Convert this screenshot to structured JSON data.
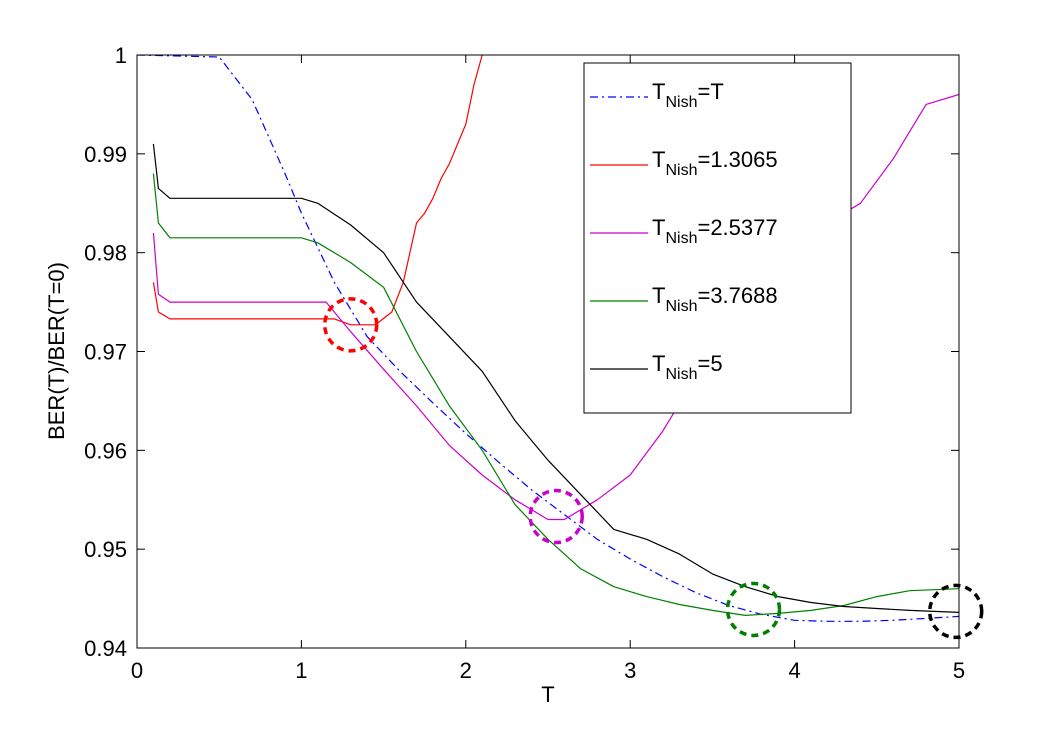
{
  "chart_data": {
    "type": "line",
    "xlabel": "T",
    "ylabel": "BER(T)/BER(T=0)",
    "xlim": [
      0,
      5
    ],
    "ylim": [
      0.94,
      1.0
    ],
    "xticks": [
      "0",
      "1",
      "2",
      "3",
      "4",
      "5"
    ],
    "yticks": [
      "0.94",
      "0.95",
      "0.96",
      "0.97",
      "0.98",
      "0.99",
      "1"
    ],
    "grid": false,
    "legend_position": "top-right",
    "series": [
      {
        "legend_main": "T",
        "legend_sub": "Nish",
        "legend_suffix": "=T",
        "color": "#0000ff",
        "dash": "dashdot",
        "x": [
          0,
          0.5,
          0.7,
          0.9,
          1.0,
          1.2,
          1.4,
          1.6,
          1.8,
          2.0,
          2.2,
          2.4,
          2.6,
          2.8,
          3.0,
          3.2,
          3.4,
          3.6,
          3.8,
          4.0,
          4.2,
          4.4,
          4.6,
          4.8,
          5.0
        ],
        "y": [
          1.0,
          0.9998,
          0.9955,
          0.988,
          0.984,
          0.977,
          0.9715,
          0.968,
          0.9648,
          0.9617,
          0.9588,
          0.956,
          0.9535,
          0.951,
          0.949,
          0.9472,
          0.9456,
          0.9443,
          0.9434,
          0.9428,
          0.9427,
          0.9427,
          0.9428,
          0.943,
          0.9432
        ]
      },
      {
        "legend_main": "T",
        "legend_sub": "Nish",
        "legend_suffix": "=1.3065",
        "color": "#ff0000",
        "dash": "solid",
        "x": [
          0.1,
          0.13,
          0.2,
          0.4,
          0.6,
          0.8,
          1.0,
          1.2,
          1.3,
          1.45,
          1.55,
          1.62,
          1.7,
          1.75,
          1.8,
          1.85,
          1.9,
          1.95,
          2.0,
          2.05,
          2.1
        ],
        "y": [
          0.977,
          0.974,
          0.9733,
          0.9733,
          0.9733,
          0.9733,
          0.9733,
          0.9733,
          0.9727,
          0.9727,
          0.974,
          0.977,
          0.983,
          0.984,
          0.9855,
          0.9875,
          0.989,
          0.991,
          0.993,
          0.997,
          1.0
        ]
      },
      {
        "legend_main": "T",
        "legend_sub": "Nish",
        "legend_suffix": "=2.5377",
        "color": "#cc00cc",
        "dash": "solid",
        "x": [
          0.1,
          0.13,
          0.2,
          0.4,
          0.6,
          0.8,
          1.0,
          1.15,
          1.3,
          1.5,
          1.7,
          1.9,
          2.1,
          2.3,
          2.5,
          2.6,
          2.8,
          3.0,
          3.2,
          3.4,
          3.6,
          3.8,
          4.0,
          4.2,
          4.4,
          4.6,
          4.8,
          5.0
        ],
        "y": [
          0.982,
          0.9758,
          0.975,
          0.975,
          0.975,
          0.975,
          0.975,
          0.975,
          0.972,
          0.9682,
          0.9645,
          0.9605,
          0.9575,
          0.955,
          0.953,
          0.953,
          0.955,
          0.9575,
          0.962,
          0.9675,
          0.9725,
          0.9765,
          0.9805,
          0.983,
          0.985,
          0.9895,
          0.995,
          0.996
        ]
      },
      {
        "legend_main": "T",
        "legend_sub": "Nish",
        "legend_suffix": "=3.7688",
        "color": "#008000",
        "dash": "solid",
        "x": [
          0.1,
          0.13,
          0.2,
          0.4,
          0.6,
          0.8,
          1.0,
          1.1,
          1.3,
          1.5,
          1.7,
          1.9,
          2.1,
          2.3,
          2.5,
          2.7,
          2.9,
          3.1,
          3.3,
          3.5,
          3.7,
          3.9,
          4.1,
          4.3,
          4.5,
          4.7,
          5.0
        ],
        "y": [
          0.988,
          0.983,
          0.9815,
          0.9815,
          0.9815,
          0.9815,
          0.9815,
          0.981,
          0.979,
          0.9765,
          0.97,
          0.9645,
          0.96,
          0.9545,
          0.951,
          0.948,
          0.9462,
          0.9452,
          0.9444,
          0.9438,
          0.9433,
          0.9435,
          0.9438,
          0.9443,
          0.9452,
          0.9458,
          0.946
        ]
      },
      {
        "legend_main": "T",
        "legend_sub": "Nish",
        "legend_suffix": "=5",
        "color": "#000000",
        "dash": "solid",
        "x": [
          0.1,
          0.13,
          0.2,
          0.4,
          0.6,
          0.8,
          1.0,
          1.1,
          1.3,
          1.5,
          1.7,
          1.9,
          2.1,
          2.3,
          2.5,
          2.7,
          2.9,
          3.1,
          3.3,
          3.5,
          3.7,
          3.9,
          4.1,
          4.3,
          4.5,
          4.7,
          5.0
        ],
        "y": [
          0.991,
          0.9865,
          0.9855,
          0.9855,
          0.9855,
          0.9855,
          0.9855,
          0.985,
          0.9828,
          0.98,
          0.975,
          0.9715,
          0.968,
          0.963,
          0.959,
          0.9555,
          0.952,
          0.951,
          0.9495,
          0.9475,
          0.9462,
          0.9452,
          0.9446,
          0.9442,
          0.944,
          0.9438,
          0.9436
        ]
      }
    ],
    "annotations": [
      {
        "type": "dashed-circle",
        "x": 1.3,
        "y": 0.9727,
        "color": "#ff0000"
      },
      {
        "type": "dashed-circle",
        "x": 2.55,
        "y": 0.9533,
        "color": "#cc00cc"
      },
      {
        "type": "dashed-circle",
        "x": 3.75,
        "y": 0.9439,
        "color": "#008000"
      },
      {
        "type": "dashed-circle",
        "x": 4.98,
        "y": 0.9437,
        "color": "#000000"
      }
    ]
  }
}
